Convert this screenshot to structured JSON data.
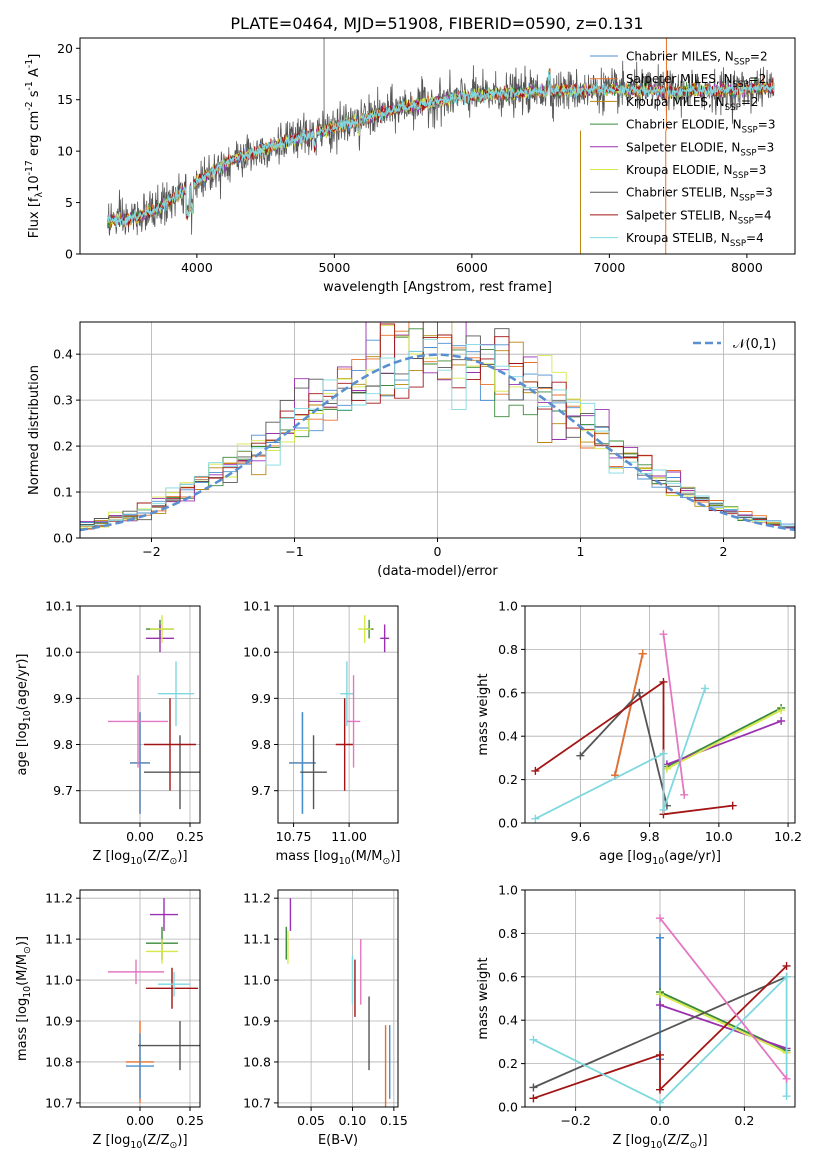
{
  "figure": {
    "title": "PLATE=0464, MJD=51908, FIBERID=0590, z=0.131"
  },
  "models": [
    {
      "name": "Chabrier MILES, N$_{SSP}$=2",
      "color": "#4a8fd0"
    },
    {
      "name": "Salpeter MILES, N$_{SSP}$=2",
      "color": "#e8702a"
    },
    {
      "name": "Kroupa MILES, N$_{SSP}$=2",
      "color": "#b8860b"
    },
    {
      "name": "Chabrier ELODIE, N$_{SSP}$=3",
      "color": "#3a8a3a"
    },
    {
      "name": "Salpeter ELODIE, N$_{SSP}$=3",
      "color": "#9b30b0"
    },
    {
      "name": "Kroupa ELODIE, N$_{SSP}$=3",
      "color": "#d6e84a"
    },
    {
      "name": "Chabrier STELIB, N$_{SSP}$=3",
      "color": "#555555"
    },
    {
      "name": "Salpeter STELIB, N$_{SSP}$=4",
      "color": "#a31515"
    },
    {
      "name": "Kroupa STELIB, N$_{SSP}$=4",
      "color": "#7fd8e0"
    }
  ],
  "chart_data": [
    {
      "id": "spectrum",
      "type": "line",
      "xlabel": "wavelength [Angstrom, rest frame]",
      "ylabel": "Flux [f$_λ$10$^{-17}$ erg cm$^{-2}$ s$^{-1}$ A$^{-1}$]",
      "xlim": [
        3150,
        8350
      ],
      "ylim": [
        0,
        21
      ],
      "xticks": [
        4000,
        5000,
        6000,
        7000,
        8000
      ],
      "yticks": [
        0,
        5,
        10,
        15,
        20
      ],
      "grid": false,
      "legend": "upper right",
      "x_range": [
        3350,
        8200
      ],
      "continuum": [
        [
          3350,
          3.3
        ],
        [
          3500,
          3.3
        ],
        [
          3700,
          4.3
        ],
        [
          3900,
          6.0
        ],
        [
          4000,
          7.0
        ],
        [
          4200,
          8.8
        ],
        [
          4500,
          10.3
        ],
        [
          5000,
          12.3
        ],
        [
          5500,
          14.3
        ],
        [
          6000,
          15.4
        ],
        [
          6500,
          15.8
        ],
        [
          7000,
          16.0
        ],
        [
          7500,
          15.8
        ],
        [
          8000,
          16.0
        ],
        [
          8200,
          16.2
        ]
      ],
      "spikes": [
        {
          "x": 4925,
          "y": 21
        },
        {
          "x": 6790,
          "y": 0
        },
        {
          "x": 7410,
          "y": 0
        },
        {
          "x": 7415,
          "y": 21
        }
      ]
    },
    {
      "id": "residuals",
      "type": "histogram",
      "xlabel": "(data-model)/error",
      "ylabel": "Normed distribution",
      "xlim": [
        -2.5,
        2.5
      ],
      "ylim": [
        0,
        0.47
      ],
      "xticks": [
        -2,
        -1,
        0,
        1,
        2
      ],
      "yticks": [
        0.0,
        0.1,
        0.2,
        0.3,
        0.4
      ],
      "grid": true,
      "legend": "upper right",
      "legend_label": "$\\mathcal{N}(0,1)$",
      "gaussian": {
        "mu": 0,
        "sigma": 1
      }
    },
    {
      "id": "z-vs-age",
      "type": "errorbar",
      "xlabel": "Z [log$_{10}$(Z/Z$_\\odot$)]",
      "ylabel": "age  [log$_{10}$(age/yr)]",
      "xlim": [
        -0.3,
        0.3
      ],
      "ylim": [
        9.63,
        10.1
      ],
      "xticks": [
        0.0,
        0.25
      ],
      "yticks": [
        9.7,
        9.8,
        9.9,
        10.0,
        10.1
      ],
      "grid": true,
      "points": [
        {
          "model": 1,
          "x": 0.0,
          "y": 9.76,
          "xe": 0.05,
          "ye": 0.11
        },
        {
          "model": 6,
          "x": 0.2,
          "y": 9.74,
          "xe": 0.18,
          "ye": 0.08
        },
        {
          "model": 7,
          "x": 0.15,
          "y": 9.8,
          "xe": 0.13,
          "ye": 0.1
        },
        {
          "model": 3,
          "x": 0.1,
          "y": 10.05,
          "xe": 0.07,
          "ye": 0.02
        },
        {
          "model": 4,
          "x": 0.1,
          "y": 10.03,
          "xe": 0.07,
          "ye": 0.03
        },
        {
          "model": 5,
          "x": 0.11,
          "y": 10.05,
          "xe": 0.06,
          "ye": 0.03
        },
        {
          "model": 8,
          "x": 0.18,
          "y": 9.91,
          "xe": 0.09,
          "ye": 0.07
        },
        {
          "model": 0,
          "x": 0.0,
          "y": 9.76,
          "xe": 0.05,
          "ye": 0.11
        },
        {
          "model": "pink",
          "x": -0.01,
          "y": 9.85,
          "xe": 0.15,
          "ye": 0.1
        }
      ]
    },
    {
      "id": "mass-vs-age",
      "type": "errorbar",
      "xlabel": "mass [log$_{10}$(M/M$_\\odot$)]",
      "ylabel": "",
      "xlim": [
        10.68,
        11.22
      ],
      "ylim": [
        9.63,
        10.1
      ],
      "xticks": [
        10.75,
        11.0
      ],
      "yticks": [
        9.7,
        9.8,
        9.9,
        10.0,
        10.1
      ],
      "grid": true,
      "points": [
        {
          "model": 1,
          "x": 10.79,
          "y": 9.76,
          "xe": 0.06,
          "ye": 0.11
        },
        {
          "model": 0,
          "x": 10.79,
          "y": 9.76,
          "xe": 0.06,
          "ye": 0.11
        },
        {
          "model": 6,
          "x": 10.84,
          "y": 9.74,
          "xe": 0.06,
          "ye": 0.08
        },
        {
          "model": 7,
          "x": 10.98,
          "y": 9.8,
          "xe": 0.04,
          "ye": 0.1
        },
        {
          "model": 8,
          "x": 10.99,
          "y": 9.91,
          "xe": 0.03,
          "ye": 0.07
        },
        {
          "model": "pink",
          "x": 11.02,
          "y": 9.85,
          "xe": 0.03,
          "ye": 0.1
        },
        {
          "model": 3,
          "x": 11.09,
          "y": 10.05,
          "xe": 0.02,
          "ye": 0.02
        },
        {
          "model": 5,
          "x": 11.07,
          "y": 10.05,
          "xe": 0.03,
          "ye": 0.03
        },
        {
          "model": 4,
          "x": 11.16,
          "y": 10.03,
          "xe": 0.02,
          "ye": 0.03
        }
      ]
    },
    {
      "id": "age-vs-weight",
      "type": "line",
      "xlabel": "age  [log$_{10}$(age/yr)]",
      "ylabel": "mass weight",
      "xlim": [
        9.44,
        10.22
      ],
      "ylim": [
        0,
        1
      ],
      "xticks": [
        9.6,
        9.8,
        10.0,
        10.2
      ],
      "yticks": [
        0.0,
        0.2,
        0.4,
        0.6,
        0.8,
        1.0
      ],
      "grid": true,
      "series": [
        {
          "model": 0,
          "x": [
            9.7,
            9.78
          ],
          "y": [
            0.22,
            0.78
          ]
        },
        {
          "model": 1,
          "x": [
            9.7,
            9.78
          ],
          "y": [
            0.22,
            0.78
          ]
        },
        {
          "model": 3,
          "x": [
            9.85,
            10.18
          ],
          "y": [
            0.26,
            0.53
          ]
        },
        {
          "model": 4,
          "x": [
            9.85,
            10.18
          ],
          "y": [
            0.27,
            0.47
          ]
        },
        {
          "model": 5,
          "x": [
            9.85,
            10.18
          ],
          "y": [
            0.25,
            0.52
          ]
        },
        {
          "model": 6,
          "x": [
            9.6,
            9.77,
            9.85
          ],
          "y": [
            0.31,
            0.6,
            0.08
          ]
        },
        {
          "model": 7,
          "x": [
            9.47,
            9.84,
            9.84,
            10.04
          ],
          "y": [
            0.24,
            0.65,
            0.04,
            0.08
          ]
        },
        {
          "model": 8,
          "x": [
            9.47,
            9.84,
            9.84,
            9.96
          ],
          "y": [
            0.02,
            0.32,
            0.06,
            0.62
          ]
        },
        {
          "model": "pink",
          "x": [
            9.84,
            9.9
          ],
          "y": [
            0.87,
            0.13
          ]
        }
      ]
    },
    {
      "id": "z-vs-mass",
      "type": "errorbar",
      "xlabel": "Z [log$_{10}$(Z/Z$_\\odot$)]",
      "ylabel": "mass [log$_{10}$(M/M$_\\odot$)]",
      "xlim": [
        -0.3,
        0.3
      ],
      "ylim": [
        10.69,
        11.22
      ],
      "xticks": [
        0.0,
        0.25
      ],
      "yticks": [
        10.7,
        10.8,
        10.9,
        11.0,
        11.1,
        11.2
      ],
      "grid": true,
      "points": [
        {
          "model": 1,
          "x": 0.0,
          "y": 10.8,
          "xe": 0.07,
          "ye": 0.1
        },
        {
          "model": 0,
          "x": 0.0,
          "y": 10.79,
          "xe": 0.07,
          "ye": 0.08
        },
        {
          "model": 6,
          "x": 0.2,
          "y": 10.84,
          "xe": 0.21,
          "ye": 0.06
        },
        {
          "model": 7,
          "x": 0.16,
          "y": 10.98,
          "xe": 0.13,
          "ye": 0.05
        },
        {
          "model": 8,
          "x": 0.17,
          "y": 10.99,
          "xe": 0.08,
          "ye": 0.03
        },
        {
          "model": "pink",
          "x": -0.02,
          "y": 11.02,
          "xe": 0.14,
          "ye": 0.03
        },
        {
          "model": 3,
          "x": 0.11,
          "y": 11.09,
          "xe": 0.08,
          "ye": 0.04
        },
        {
          "model": 5,
          "x": 0.11,
          "y": 11.07,
          "xe": 0.08,
          "ye": 0.03
        },
        {
          "model": 4,
          "x": 0.12,
          "y": 11.16,
          "xe": 0.07,
          "ye": 0.04
        }
      ]
    },
    {
      "id": "ebv-vs-mass",
      "type": "errorbar",
      "xlabel": "E(B-V)",
      "ylabel": "",
      "xlim": [
        0.01,
        0.155
      ],
      "ylim": [
        10.69,
        11.22
      ],
      "xticks": [
        0.05,
        0.1,
        0.15
      ],
      "yticks": [
        10.7,
        10.8,
        10.9,
        11.0,
        11.1,
        11.2
      ],
      "grid": true,
      "points": [
        {
          "model": 4,
          "x": 0.025,
          "y": 11.16,
          "xe": 0,
          "ye": 0.04
        },
        {
          "model": 3,
          "x": 0.02,
          "y": 11.09,
          "xe": 0,
          "ye": 0.04
        },
        {
          "model": 5,
          "x": 0.022,
          "y": 11.08,
          "xe": 0,
          "ye": 0.04
        },
        {
          "model": "pink",
          "x": 0.11,
          "y": 11.02,
          "xe": 0,
          "ye": 0.08
        },
        {
          "model": 7,
          "x": 0.103,
          "y": 10.98,
          "xe": 0,
          "ye": 0.07
        },
        {
          "model": 8,
          "x": 0.1,
          "y": 11.0,
          "xe": 0,
          "ye": 0.06
        },
        {
          "model": 6,
          "x": 0.12,
          "y": 10.87,
          "xe": 0,
          "ye": 0.09
        },
        {
          "model": 1,
          "x": 0.14,
          "y": 10.79,
          "xe": 0,
          "ye": 0.1
        },
        {
          "model": 0,
          "x": 0.145,
          "y": 10.8,
          "xe": 0,
          "ye": 0.09
        }
      ]
    },
    {
      "id": "z-vs-weight",
      "type": "line",
      "xlabel": "Z [log$_{10}$(Z/Z$_\\odot$)]",
      "ylabel": "mass weight",
      "xlim": [
        -0.32,
        0.32
      ],
      "ylim": [
        0,
        1
      ],
      "xticks": [
        -0.2,
        0.0,
        0.2
      ],
      "yticks": [
        0.0,
        0.2,
        0.4,
        0.6,
        0.8,
        1.0
      ],
      "grid": true,
      "series": [
        {
          "model": 1,
          "x": [
            0.0,
            0.0
          ],
          "y": [
            0.22,
            0.78
          ]
        },
        {
          "model": 0,
          "x": [
            0.0,
            0.0
          ],
          "y": [
            0.22,
            0.78
          ]
        },
        {
          "model": 3,
          "x": [
            0.0,
            0.3
          ],
          "y": [
            0.53,
            0.26
          ]
        },
        {
          "model": 4,
          "x": [
            0.0,
            0.3
          ],
          "y": [
            0.47,
            0.27
          ]
        },
        {
          "model": 5,
          "x": [
            0.0,
            0.3
          ],
          "y": [
            0.52,
            0.25
          ]
        },
        {
          "model": 6,
          "x": [
            -0.3,
            0.3
          ],
          "y": [
            0.09,
            0.6
          ]
        },
        {
          "model": 7,
          "x": [
            -0.3,
            0.0,
            0.0,
            0.3
          ],
          "y": [
            0.04,
            0.24,
            0.08,
            0.65
          ]
        },
        {
          "model": 8,
          "x": [
            -0.3,
            0.0,
            0.3,
            0.3
          ],
          "y": [
            0.31,
            0.02,
            0.6,
            0.05
          ]
        },
        {
          "model": "pink",
          "x": [
            0.0,
            0.3
          ],
          "y": [
            0.87,
            0.13
          ]
        }
      ]
    }
  ]
}
